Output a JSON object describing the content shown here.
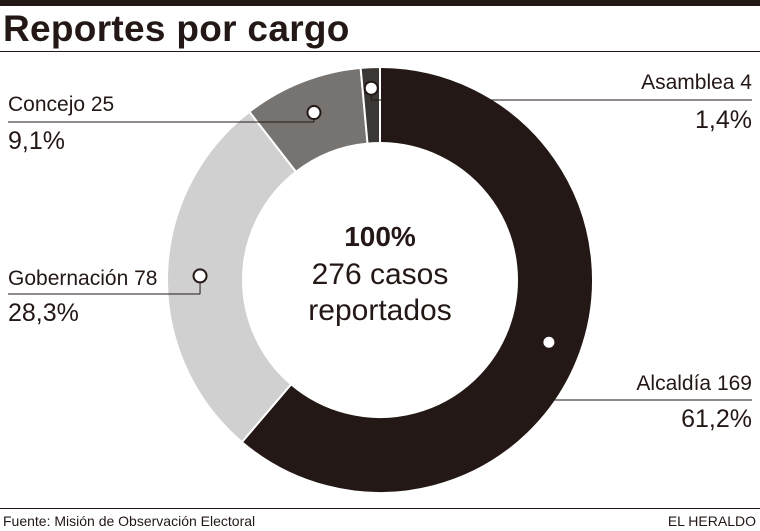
{
  "title": "Reportes por cargo",
  "center": {
    "percent": "100%",
    "line1": "276 casos",
    "line2": "reportados"
  },
  "labels": {
    "asamblea": {
      "name": "Asamblea 4",
      "pct": "1,4%"
    },
    "concejo": {
      "name": "Concejo 25",
      "pct": "9,1%"
    },
    "gobernacion": {
      "name": "Gobernación 78",
      "pct": "28,3%"
    },
    "alcaldia": {
      "name": "Alcaldía 169",
      "pct": "61,2%"
    }
  },
  "footer": {
    "source": "Fuente: Misión de Observación Electoral",
    "brand": "EL HERALDO"
  },
  "chart_data": {
    "type": "pie",
    "title": "Reportes por cargo",
    "total": 276,
    "slices": [
      {
        "name": "Alcaldía",
        "value": 169,
        "percent": 61.2,
        "color": "#231815"
      },
      {
        "name": "Gobernación",
        "value": 78,
        "percent": 28.3,
        "color": "#d0d0d0"
      },
      {
        "name": "Concejo",
        "value": 25,
        "percent": 9.1,
        "color": "#777370"
      },
      {
        "name": "Asamblea",
        "value": 4,
        "percent": 1.4,
        "color": "#3b3734"
      }
    ]
  }
}
